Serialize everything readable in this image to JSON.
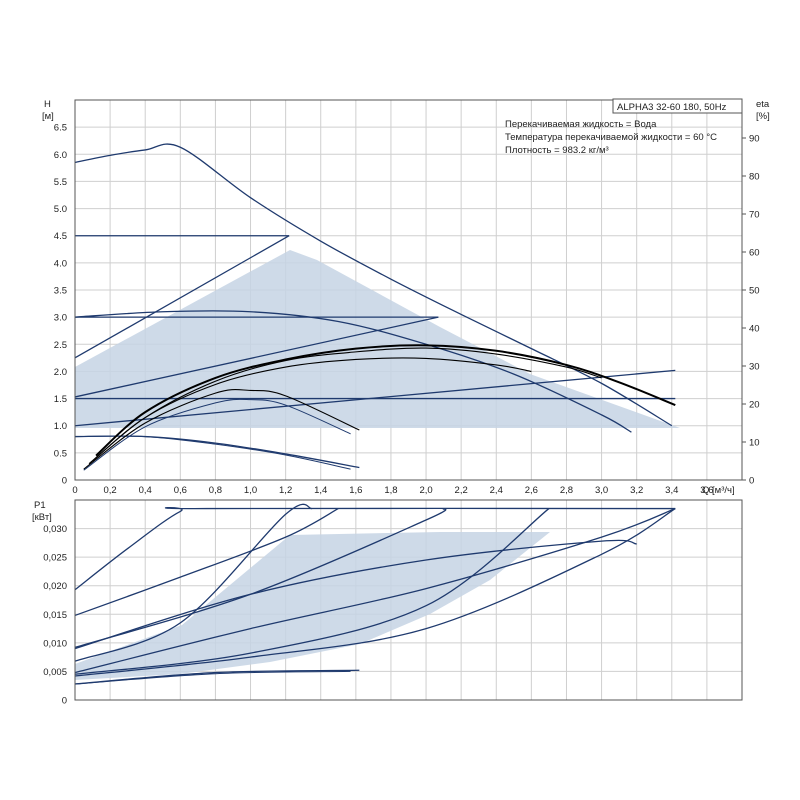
{
  "chart_data": [
    {
      "type": "line",
      "title": "ALPHA3 32-60 180, 50Hz",
      "info": [
        "Перекачиваемая жидкость = Вода",
        "Температура перекачиваемой жидкости = 60 °C",
        "Плотность = 983.2 кг/м³"
      ],
      "ylabel": "H",
      "yunit": "[м]",
      "y2label": "eta",
      "y2unit": "[%]",
      "xlabel": "Q [м³/ч]",
      "xlim": [
        0,
        3.8
      ],
      "ylim": [
        0,
        7.0
      ],
      "y2lim": [
        0,
        100
      ],
      "xticks": [
        "0",
        "0,2",
        "0,4",
        "0,6",
        "0,8",
        "1,0",
        "1,2",
        "1,4",
        "1,6",
        "1,8",
        "2,0",
        "2,2",
        "2,4",
        "2,6",
        "2,8",
        "3,0",
        "3,2",
        "3,4",
        "3,6"
      ],
      "yticks": [
        "0",
        "0.5",
        "1.0",
        "1.5",
        "2.0",
        "2.5",
        "3.0",
        "3.5",
        "4.0",
        "4.5",
        "5.0",
        "5.5",
        "6.0",
        "6.5"
      ],
      "y2ticks": [
        "0",
        "10",
        "20",
        "30",
        "40",
        "50",
        "60",
        "70",
        "80",
        "90"
      ],
      "grid": true,
      "series": [
        {
          "style": "curve",
          "x": [
            0,
            0.2,
            0.4,
            0.6,
            1.0,
            1.4,
            1.8,
            2.2,
            2.6,
            3.0,
            3.4
          ],
          "y": [
            5.85,
            5.98,
            6.08,
            6.13,
            5.2,
            4.4,
            3.7,
            3.05,
            2.42,
            1.78,
            1.0
          ]
        },
        {
          "style": "curve",
          "x": [
            0,
            1.22
          ],
          "y": [
            4.5,
            4.5
          ]
        },
        {
          "style": "curve",
          "x": [
            0,
            1.22
          ],
          "y": [
            2.25,
            4.5
          ]
        },
        {
          "style": "curve",
          "x": [
            0,
            2.07
          ],
          "y": [
            3.0,
            3.0
          ]
        },
        {
          "style": "curve",
          "x": [
            0,
            2.07
          ],
          "y": [
            1.53,
            3.0
          ]
        },
        {
          "style": "curve",
          "x": [
            0,
            3.42
          ],
          "y": [
            1.5,
            1.5
          ]
        },
        {
          "style": "curve",
          "x": [
            0,
            3.42
          ],
          "y": [
            1.0,
            2.02
          ]
        },
        {
          "style": "curve",
          "x": [
            0,
            0.5,
            1.0,
            1.5,
            2.0,
            2.5,
            3.0,
            3.17
          ],
          "y": [
            3.0,
            3.1,
            3.1,
            2.92,
            2.5,
            1.95,
            1.2,
            0.88
          ]
        },
        {
          "style": "curve",
          "x": [
            0,
            0.4,
            0.8,
            1.2,
            1.62
          ],
          "y": [
            0.8,
            0.8,
            0.68,
            0.48,
            0.23
          ]
        },
        {
          "style": "curve-thin",
          "x": [
            0,
            0.4,
            0.8,
            1.2,
            1.57
          ],
          "y": [
            0.8,
            0.8,
            0.66,
            0.46,
            0.2
          ]
        },
        {
          "style": "curve-bold",
          "x": [
            0.12,
            0.4,
            0.8,
            1.2,
            1.6,
            2.0,
            2.4,
            2.8,
            3.1,
            3.42
          ],
          "y": [
            0.45,
            1.25,
            1.88,
            2.22,
            2.42,
            2.48,
            2.38,
            2.12,
            1.8,
            1.38
          ]
        },
        {
          "style": "curve-black",
          "x": [
            0.08,
            0.4,
            0.8,
            1.2,
            1.6,
            2.0,
            2.4,
            2.8,
            3.0
          ],
          "y": [
            0.3,
            1.15,
            1.82,
            2.2,
            2.36,
            2.43,
            2.32,
            2.08,
            1.88
          ]
        },
        {
          "style": "curve-black",
          "x": [
            0.1,
            0.4,
            0.8,
            1.2,
            1.6,
            2.0,
            2.4,
            2.6
          ],
          "y": [
            0.35,
            1.15,
            1.76,
            2.08,
            2.22,
            2.24,
            2.12,
            2.0
          ]
        },
        {
          "style": "curve-black",
          "x": [
            0.05,
            0.4,
            0.8,
            1.0,
            1.2,
            1.62
          ],
          "y": [
            0.2,
            1.05,
            1.6,
            1.65,
            1.55,
            0.92
          ]
        },
        {
          "style": "curve-thin",
          "x": [
            0.05,
            0.4,
            0.8,
            1.0,
            1.2,
            1.57
          ],
          "y": [
            0.18,
            0.98,
            1.42,
            1.48,
            1.38,
            0.85
          ]
        }
      ]
    },
    {
      "type": "line",
      "ylabel": "P1",
      "yunit": "[кВт]",
      "xlim": [
        0,
        3.8
      ],
      "ylim": [
        0,
        0.035
      ],
      "yticks": [
        "0",
        "0,005",
        "0,010",
        "0,015",
        "0,020",
        "0,025",
        "0,030"
      ],
      "grid": true,
      "series": [
        {
          "style": "curve",
          "x": [
            0,
            0.3,
            0.6,
            0.75,
            3.42
          ],
          "y": [
            0.0193,
            0.0265,
            0.033,
            0.0335,
            0.0335
          ]
        },
        {
          "style": "curve",
          "x": [
            0,
            0.6,
            1.2,
            1.5
          ],
          "y": [
            0.0148,
            0.0215,
            0.0285,
            0.0335
          ]
        },
        {
          "style": "curve",
          "x": [
            0,
            0.6,
            1.2,
            1.35
          ],
          "y": [
            0.0068,
            0.0135,
            0.0325,
            0.0335
          ]
        },
        {
          "style": "curve",
          "x": [
            0,
            1.0,
            2.0,
            2.1
          ],
          "y": [
            0.0092,
            0.0185,
            0.0315,
            0.0335
          ]
        },
        {
          "style": "curve",
          "x": [
            0,
            1.0,
            2.0,
            3.0,
            3.42
          ],
          "y": [
            0.0048,
            0.0125,
            0.0195,
            0.0285,
            0.0335
          ]
        },
        {
          "style": "curve",
          "x": [
            0,
            1.0,
            2.0,
            2.7
          ],
          "y": [
            0.0045,
            0.0082,
            0.0165,
            0.0335
          ]
        },
        {
          "style": "curve",
          "x": [
            0,
            1.0,
            2.0,
            3.0,
            3.2
          ],
          "y": [
            0.009,
            0.0185,
            0.0245,
            0.0278,
            0.0273
          ]
        },
        {
          "style": "curve",
          "x": [
            0,
            1.0,
            2.0,
            3.0,
            3.42
          ],
          "y": [
            0.0042,
            0.0075,
            0.0125,
            0.0255,
            0.0335
          ]
        },
        {
          "style": "curve",
          "x": [
            0,
            0.8,
            1.62
          ],
          "y": [
            0.0028,
            0.0048,
            0.0052
          ]
        },
        {
          "style": "curve-thin",
          "x": [
            0,
            0.8,
            1.57
          ],
          "y": [
            0.0028,
            0.0046,
            0.005
          ]
        }
      ]
    }
  ]
}
